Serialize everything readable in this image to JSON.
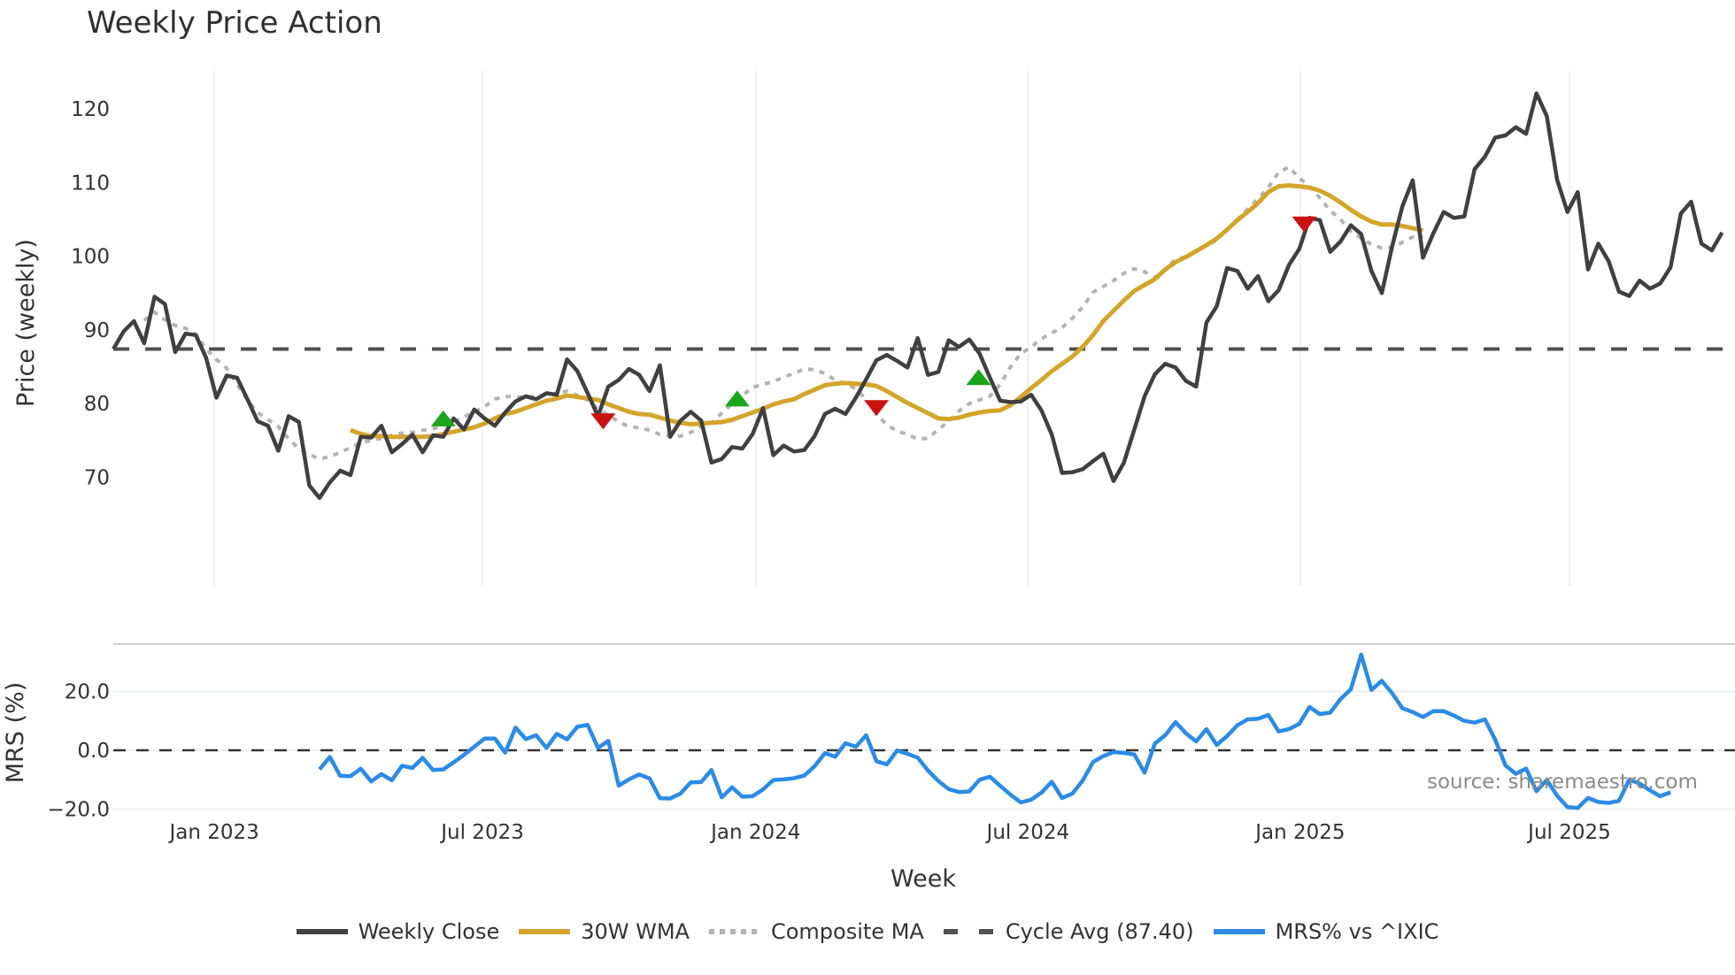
{
  "title": "Weekly Price Action",
  "legend": [
    {
      "label": "Weekly Close",
      "color": "#404040",
      "style": "solid"
    },
    {
      "label": "30W WMA",
      "color": "#d4a52a",
      "style": "solid"
    },
    {
      "label": "Composite MA",
      "color": "#b4b4b4",
      "style": "dotted"
    },
    {
      "label": "Cycle Avg (87.40)",
      "color": "#505050",
      "style": "dashed"
    },
    {
      "label": "MRS% vs ^IXIC",
      "color": "#2b8be6",
      "style": "solid"
    }
  ],
  "source": "source: sharemaestro.com",
  "chart_data": [
    {
      "type": "line",
      "title": "Weekly Price Action",
      "xlabel": "Week",
      "ylabel": "Price (weekly)",
      "ylim": [
        64,
        126
      ],
      "yticks": [
        70,
        80,
        90,
        100,
        110,
        120
      ],
      "xticks": [
        "Jan 2023",
        "Jul 2023",
        "Jan 2024",
        "Jul 2024",
        "Jan 2025",
        "Jul 2025"
      ],
      "xtick_week_index": [
        9.8,
        35.8,
        62.3,
        88.7,
        115.1,
        141.2
      ],
      "grid": "vertical",
      "cycle_avg": 87.4,
      "series": [
        {
          "name": "Weekly Close",
          "start_index": 0,
          "values": [
            87.4,
            89.8,
            91.2,
            88.2,
            94.5,
            93.5,
            87.0,
            89.5,
            89.3,
            86.2,
            80.8,
            83.8,
            83.5,
            80.6,
            77.6,
            77.0,
            73.6,
            78.3,
            77.5,
            68.9,
            67.2,
            69.3,
            70.9,
            70.3,
            75.5,
            75.4,
            77.0,
            73.4,
            74.5,
            75.8,
            73.4,
            75.7,
            75.5,
            78.0,
            76.5,
            79.2,
            78.0,
            77.0,
            78.8,
            80.3,
            81.0,
            80.6,
            81.4,
            81.2,
            86.0,
            84.4,
            81.4,
            78.3,
            82.3,
            83.2,
            84.7,
            83.9,
            81.7,
            85.2,
            75.5,
            77.7,
            78.9,
            77.7,
            72.0,
            72.5,
            74.1,
            73.9,
            75.9,
            79.4,
            73.0,
            74.3,
            73.5,
            73.7,
            75.6,
            78.6,
            79.3,
            78.6,
            80.8,
            83.3,
            85.9,
            86.6,
            85.8,
            84.9,
            88.9,
            83.9,
            84.3,
            88.6,
            87.7,
            88.7,
            86.8,
            83.5,
            80.4,
            80.2,
            80.3,
            81.2,
            79.1,
            75.8,
            70.6,
            70.7,
            71.1,
            72.2,
            73.2,
            69.5,
            72.0,
            76.5,
            81.0,
            84.0,
            85.4,
            84.9,
            83.1,
            82.3,
            91.0,
            93.2,
            98.4,
            98.0,
            95.6,
            97.3,
            93.9,
            95.4,
            98.8,
            101.0,
            105.2,
            104.9,
            100.6,
            102.0,
            104.2,
            103.0,
            98.0,
            95.0,
            101.3,
            106.8,
            110.3,
            99.8,
            103.1,
            106.0,
            105.2,
            105.4,
            111.8,
            113.5,
            116.1,
            116.4,
            117.5,
            116.6,
            122.1,
            119.0,
            110.4,
            106.0,
            108.7,
            98.2,
            101.7,
            99.3,
            95.2,
            94.6,
            96.7,
            95.6,
            96.3,
            98.5,
            105.8,
            107.4,
            101.7,
            100.8,
            103.2
          ]
        },
        {
          "name": "30W WMA",
          "start_index": 23,
          "values": [
            76.4,
            75.9,
            75.6,
            75.6,
            75.5,
            75.5,
            75.5,
            75.5,
            75.6,
            75.9,
            76.2,
            76.5,
            76.8,
            77.3,
            78.0,
            78.6,
            78.9,
            79.4,
            79.9,
            80.4,
            80.7,
            81.1,
            80.9,
            80.7,
            80.5,
            79.9,
            79.4,
            78.9,
            78.6,
            78.5,
            78.1,
            77.7,
            77.4,
            77.2,
            77.3,
            77.4,
            77.5,
            77.8,
            78.3,
            78.8,
            79.3,
            79.9,
            80.3,
            80.6,
            81.3,
            81.9,
            82.5,
            82.7,
            82.8,
            82.7,
            82.6,
            82.4,
            81.7,
            80.9,
            80.1,
            79.4,
            78.7,
            78.0,
            77.9,
            78.1,
            78.5,
            78.8,
            79.0,
            79.1,
            79.8,
            80.9,
            82.1,
            83.2,
            84.4,
            85.4,
            86.4,
            87.7,
            89.3,
            91.2,
            92.6,
            94.0,
            95.3,
            96.1,
            96.9,
            98.2,
            99.2,
            99.9,
            100.7,
            101.5,
            102.4,
            103.6,
            104.9,
            106.0,
            107.2,
            108.7,
            109.5,
            109.6,
            109.5,
            109.3,
            108.9,
            108.2,
            107.3,
            106.3,
            105.4,
            104.7,
            104.3,
            104.3,
            104.1,
            103.8,
            103.5
          ]
        },
        {
          "name": "Composite MA",
          "start_index": 3,
          "values": [
            91.3,
            92.4,
            91.4,
            90.6,
            90.2,
            89.4,
            87.4,
            86.0,
            84.8,
            82.6,
            80.5,
            78.8,
            77.8,
            76.9,
            75.2,
            73.9,
            73.1,
            72.5,
            72.8,
            73.4,
            74.0,
            74.7,
            75.0,
            75.3,
            75.7,
            76.0,
            76.1,
            76.4,
            76.6,
            77.0,
            77.5,
            78.2,
            78.9,
            79.6,
            80.6,
            81.0,
            80.9,
            80.9,
            81.0,
            81.2,
            81.4,
            81.7,
            81.1,
            80.5,
            79.2,
            78.5,
            77.5,
            76.9,
            76.7,
            76.4,
            75.8,
            75.6,
            75.6,
            76.1,
            76.9,
            77.4,
            78.7,
            80.0,
            81.1,
            82.2,
            82.6,
            83.0,
            83.6,
            84.1,
            84.7,
            84.6,
            84.1,
            83.2,
            82.7,
            82.0,
            80.6,
            78.6,
            77.1,
            76.3,
            75.8,
            75.2,
            75.3,
            76.5,
            77.6,
            79.0,
            80.0,
            80.5,
            81.0,
            82.6,
            85.0,
            86.8,
            87.7,
            88.8,
            89.6,
            90.3,
            91.6,
            93.1,
            95.1,
            95.9,
            96.7,
            97.7,
            98.3,
            97.9,
            97.1,
            98.2,
            99.6,
            99.9,
            100.7,
            101.4,
            102.2,
            103.6,
            105.0,
            106.4,
            107.8,
            109.3,
            111.4,
            112.1,
            110.6,
            109.5,
            107.9,
            106.2,
            105.0,
            103.4,
            102.4,
            101.6,
            101.1,
            101.2,
            101.9,
            102.6,
            102.6
          ]
        },
        {
          "name": "Cycle Avg (87.40)",
          "constant": 87.4
        }
      ],
      "markers": [
        {
          "type": "buy",
          "shape": "triangle-up",
          "color": "#1aa51a",
          "week_index": 32,
          "value": 78.0
        },
        {
          "type": "sell",
          "shape": "triangle-down",
          "color": "#cc1111",
          "week_index": 47.5,
          "value": 77.6
        },
        {
          "type": "buy",
          "shape": "triangle-up",
          "color": "#1aa51a",
          "week_index": 60.5,
          "value": 80.7
        },
        {
          "type": "sell",
          "shape": "triangle-down",
          "color": "#cc1111",
          "week_index": 74,
          "value": 79.4
        },
        {
          "type": "buy",
          "shape": "triangle-up",
          "color": "#1aa51a",
          "week_index": 83.9,
          "value": 83.6
        },
        {
          "type": "sell",
          "shape": "triangle-down",
          "color": "#cc1111",
          "week_index": 115.5,
          "value": 104.3
        }
      ]
    },
    {
      "type": "line",
      "ylabel": "MRS (%)",
      "ylim": [
        -23,
        34
      ],
      "yticks": [
        -20.0,
        0.0,
        20.0
      ],
      "zero_line": 0.0,
      "series": [
        {
          "name": "MRS% vs ^IXIC",
          "start_index": 20,
          "values": [
            -6.5,
            -2.3,
            -8.7,
            -8.8,
            -6.3,
            -10.6,
            -8.1,
            -10.2,
            -5.3,
            -6.0,
            -2.6,
            -6.7,
            -6.5,
            -4.1,
            -1.6,
            1.2,
            4.0,
            4.0,
            -0.8,
            7.7,
            3.8,
            5.1,
            0.8,
            5.6,
            3.7,
            8.0,
            8.6,
            0.8,
            3.2,
            -12.0,
            -9.9,
            -8.2,
            -9.6,
            -16.3,
            -16.4,
            -14.7,
            -10.9,
            -10.8,
            -6.7,
            -16.0,
            -12.6,
            -15.8,
            -15.6,
            -13.3,
            -10.1,
            -9.9,
            -9.5,
            -8.6,
            -5.4,
            -1.0,
            -2.2,
            2.4,
            1.2,
            5.1,
            -3.7,
            -4.8,
            -0.1,
            -1.2,
            -2.5,
            -6.9,
            -10.4,
            -13.2,
            -14.2,
            -14.0,
            -10.0,
            -9.0,
            -12.1,
            -15.1,
            -17.7,
            -16.8,
            -14.4,
            -10.7,
            -16.2,
            -14.7,
            -10.3,
            -4.0,
            -2.0,
            -0.6,
            -0.9,
            -1.4,
            -7.6,
            2.3,
            5.1,
            9.6,
            5.8,
            3.0,
            7.2,
            1.8,
            4.8,
            8.5,
            10.5,
            10.7,
            12.0,
            6.4,
            7.2,
            9.0,
            14.7,
            12.3,
            12.8,
            17.4,
            20.7,
            32.5,
            20.5,
            23.6,
            19.4,
            14.3,
            13.0,
            11.3,
            13.3,
            13.3,
            11.8,
            10.0,
            9.4,
            10.5,
            3.6,
            -5.2,
            -8.0,
            -6.2,
            -13.9,
            -10.1,
            -15.4,
            -19.3,
            -19.6,
            -16.2,
            -17.6,
            -17.9,
            -17.2,
            -10.0,
            -11.3,
            -13.6,
            -15.6,
            -14.3
          ]
        }
      ]
    }
  ]
}
